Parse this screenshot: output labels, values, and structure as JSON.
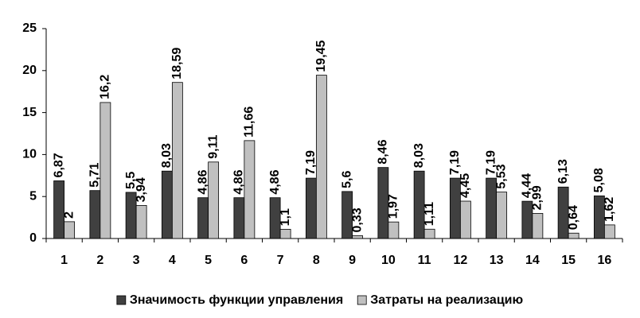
{
  "chart_data": {
    "type": "bar",
    "categories": [
      "1",
      "2",
      "3",
      "4",
      "5",
      "6",
      "7",
      "8",
      "9",
      "10",
      "11",
      "12",
      "13",
      "14",
      "15",
      "16"
    ],
    "series": [
      {
        "name": "Значимость функции управления",
        "color": "#404040",
        "values": [
          6.87,
          5.71,
          5.5,
          8.03,
          4.86,
          4.86,
          4.86,
          7.19,
          5.6,
          8.46,
          8.03,
          7.19,
          7.19,
          4.44,
          6.13,
          5.08
        ],
        "value_labels": [
          "6,87",
          "5,71",
          "5,5",
          "8,03",
          "4,86",
          "4,86",
          "4,86",
          "7,19",
          "5,6",
          "8,46",
          "8,03",
          "7,19",
          "7,19",
          "4,44",
          "6,13",
          "5,08"
        ]
      },
      {
        "name": "Затраты на реализацию",
        "color": "#c0c0c0",
        "values": [
          2,
          16.2,
          3.94,
          18.59,
          9.11,
          11.66,
          1.1,
          19.45,
          0.33,
          1.97,
          1.11,
          4.45,
          5.53,
          2.99,
          0.64,
          1.62
        ],
        "value_labels": [
          "2",
          "16,2",
          "3,94",
          "18,59",
          "9,11",
          "11,66",
          "1,1",
          "19,45",
          "0,33",
          "1,97",
          "1,11",
          "4,45",
          "5,53",
          "2,99",
          "0,64",
          "1,62"
        ]
      }
    ],
    "ylim": [
      0,
      25
    ],
    "yticks": [
      0,
      5,
      10,
      15,
      20,
      25
    ],
    "grid": false,
    "legend": "bottom"
  }
}
